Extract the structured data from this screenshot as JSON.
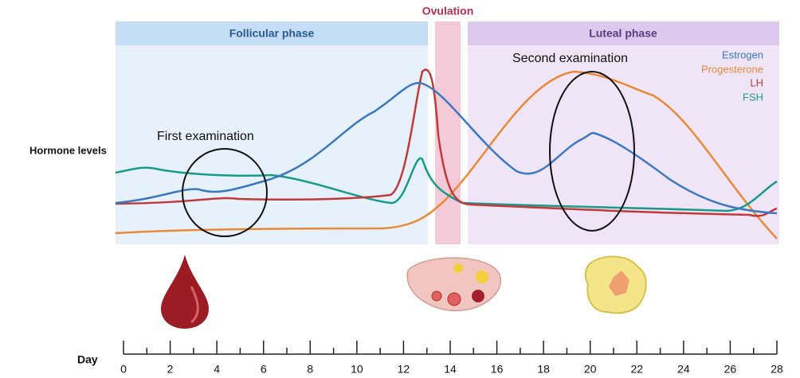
{
  "phases": {
    "follicular": "Follicular phase",
    "ovulation": "Ovulation",
    "luteal": "Luteal phase"
  },
  "y_label": "Hormone levels",
  "legend": [
    "Estrogen",
    "Progesterone",
    "LH",
    "FSH"
  ],
  "annotations": {
    "first": "First examination",
    "second": "Second examination"
  },
  "day_axis": {
    "label": "Day",
    "ticks": [
      0,
      2,
      4,
      6,
      8,
      10,
      12,
      14,
      16,
      18,
      20,
      22,
      24,
      26,
      28
    ]
  }
}
